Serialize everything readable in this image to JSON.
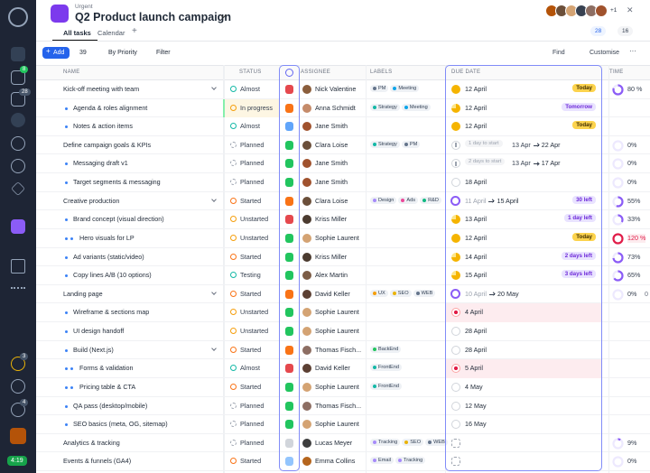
{
  "sidebar": {
    "tasks_badge": "8",
    "inbox_badge": "28",
    "timer_badge": "3",
    "help_badge": "4",
    "clock": "4:19"
  },
  "header": {
    "priority": "Urgent",
    "title": "Q2 Product launch campaign",
    "more_members": "+1",
    "comments": "28",
    "approvals": "16"
  },
  "tabs": [
    "All tasks",
    "Calendar"
  ],
  "toolbar": {
    "add": "Add",
    "count": "39",
    "sort": "By Priority",
    "filter": "Filter",
    "find": "Find",
    "customise": "Customise"
  },
  "table": {
    "columns": {
      "name": "NAME",
      "status": "STATUS",
      "assignee": "ASSIGNEE",
      "labels": "LABELS",
      "due": "DUE DATE",
      "time": "TIME"
    },
    "rows": [
      {
        "name": "Kick-off meeting with team",
        "level": 0,
        "expand": true,
        "status": "Almost",
        "status_color": "#14b8a6",
        "priority_color": "#e5484d",
        "assignee": "Nick Valentine",
        "avatar": "#8b5e3c",
        "labels": [
          {
            "text": "PM",
            "color": "#64748b"
          },
          {
            "text": "Meeting",
            "color": "#0ea5e9"
          }
        ],
        "due": {
          "kind": "today",
          "date": "12 April",
          "badge": "Today"
        },
        "time": {
          "value": 80,
          "label": "80 %"
        }
      },
      {
        "name": "Agenda & roles alignment",
        "level": 1,
        "status": "In progress",
        "status_color": "#f59e0b",
        "priority_color": "#f97316",
        "assignee": "Anna Schmidt",
        "avatar": "#c58b6a",
        "labels": [
          {
            "text": "Strategy",
            "color": "#14b8a6"
          },
          {
            "text": "Meeting",
            "color": "#0ea5e9"
          }
        ],
        "due": {
          "kind": "soon",
          "date": "12 April",
          "badge": "Tomorrow"
        }
      },
      {
        "name": "Notes & action items",
        "level": 1,
        "status": "Almost",
        "status_color": "#14b8a6",
        "priority_color": "#60a5fa",
        "assignee": "Jane Smith",
        "avatar": "#a0522d",
        "labels": [],
        "due": {
          "kind": "today",
          "date": "12 April",
          "badge": "Today"
        }
      },
      {
        "name": "Define campaign goals & KPIs",
        "level": 0,
        "status": "Planned",
        "status_color": "#9ca3af",
        "priority_color": "#22c55e",
        "assignee": "Clara Loise",
        "avatar": "#6b4f3a",
        "labels": [
          {
            "text": "Strategy",
            "color": "#14b8a6"
          },
          {
            "text": "PM",
            "color": "#64748b"
          }
        ],
        "due": {
          "kind": "waiting",
          "hint": "1 day to start",
          "from": "13 Apr",
          "to": "22 Apr"
        },
        "time": {
          "value": 0,
          "label": "0%"
        }
      },
      {
        "name": "Messaging draft v1",
        "level": 1,
        "status": "Planned",
        "status_color": "#9ca3af",
        "priority_color": "#22c55e",
        "assignee": "Jane Smith",
        "avatar": "#a0522d",
        "labels": [],
        "due": {
          "kind": "waiting",
          "hint": "2 days to start",
          "from": "13 Apr",
          "to": "17 Apr"
        },
        "time": {
          "value": 0,
          "label": "0%"
        }
      },
      {
        "name": "Target segments & messaging",
        "level": 1,
        "status": "Planned",
        "status_color": "#9ca3af",
        "priority_color": "#22c55e",
        "assignee": "Jane Smith",
        "avatar": "#a0522d",
        "labels": [],
        "due": {
          "kind": "future",
          "date": "18 April"
        },
        "time": {
          "value": 0,
          "label": "0%"
        }
      },
      {
        "name": "Creative production",
        "level": 0,
        "expand": true,
        "status": "Started",
        "status_color": "#f97316",
        "priority_color": "#f97316",
        "assignee": "Clara Loise",
        "avatar": "#6b4f3a",
        "labels": [
          {
            "text": "Design",
            "color": "#a78bfa"
          },
          {
            "text": "Ads",
            "color": "#ec4899"
          },
          {
            "text": "R&D",
            "color": "#10b981"
          }
        ],
        "due": {
          "kind": "range",
          "from": "11 April",
          "to": "15 April",
          "badge": "30 left"
        },
        "time": {
          "value": 55,
          "label": "55%"
        }
      },
      {
        "name": "Brand concept (visual direction)",
        "level": 1,
        "status": "Unstarted",
        "status_color": "#f59e0b",
        "priority_color": "#e5484d",
        "assignee": "Kriss Miller",
        "avatar": "#4b3b2f",
        "labels": [],
        "due": {
          "kind": "soon",
          "date": "13 April",
          "badge": "1 day left"
        },
        "time": {
          "value": 33,
          "label": "33%"
        }
      },
      {
        "name": "Hero visuals for LP",
        "level": 2,
        "status": "Unstarted",
        "status_color": "#f59e0b",
        "priority_color": "#22c55e",
        "assignee": "Sophie Laurent",
        "avatar": "#d4a373",
        "labels": [],
        "due": {
          "kind": "today",
          "date": "12 April",
          "badge": "Today"
        },
        "time": {
          "value": 120,
          "label": "120 %"
        }
      },
      {
        "name": "Ad variants (static/video)",
        "level": 1,
        "status": "Started",
        "status_color": "#f97316",
        "priority_color": "#22c55e",
        "assignee": "Kriss Miller",
        "avatar": "#4b3b2f",
        "labels": [],
        "due": {
          "kind": "soon",
          "date": "14 April",
          "badge": "2 days left"
        },
        "time": {
          "value": 73,
          "label": "73%"
        }
      },
      {
        "name": "Copy lines A/B (10 options)",
        "level": 1,
        "status": "Testing",
        "status_color": "#14b8a6",
        "priority_color": "#22c55e",
        "assignee": "Alex Martin",
        "avatar": "#7c5c45",
        "labels": [],
        "due": {
          "kind": "soon",
          "date": "15 April",
          "badge": "3 days left"
        },
        "time": {
          "value": 65,
          "label": "65%"
        }
      },
      {
        "name": "Landing page",
        "level": 0,
        "expand": true,
        "status": "Started",
        "status_color": "#f97316",
        "priority_color": "#f97316",
        "assignee": "David Keller",
        "avatar": "#5c4033",
        "labels": [
          {
            "text": "UX",
            "color": "#f59e0b"
          },
          {
            "text": "SEO",
            "color": "#eab308"
          },
          {
            "text": "WEB",
            "color": "#64748b"
          }
        ],
        "due": {
          "kind": "range",
          "from": "10 April",
          "to": "20 May"
        },
        "time": {
          "value": 0,
          "label": "0%",
          "extra": "0 of"
        }
      },
      {
        "name": "Wireframe & sections map",
        "level": 1,
        "status": "Unstarted",
        "status_color": "#f59e0b",
        "priority_color": "#22c55e",
        "assignee": "Sophie Laurent",
        "avatar": "#d4a373",
        "labels": [],
        "due": {
          "kind": "overdue",
          "date": "4 April"
        }
      },
      {
        "name": "UI design handoff",
        "level": 1,
        "status": "Unstarted",
        "status_color": "#f59e0b",
        "priority_color": "#22c55e",
        "assignee": "Sophie Laurent",
        "avatar": "#d4a373",
        "labels": [],
        "due": {
          "kind": "future",
          "date": "28 April"
        }
      },
      {
        "name": "Build (Next.js)",
        "level": 1,
        "expand": true,
        "status": "Started",
        "status_color": "#f97316",
        "priority_color": "#f97316",
        "assignee": "Thomas Fisch...",
        "avatar": "#8d6e63",
        "labels": [
          {
            "text": "BackEnd",
            "color": "#22c55e"
          }
        ],
        "due": {
          "kind": "future",
          "date": "28 April"
        }
      },
      {
        "name": "Forms & validation",
        "level": 2,
        "status": "Almost",
        "status_color": "#14b8a6",
        "priority_color": "#e5484d",
        "assignee": "David Keller",
        "avatar": "#5c4033",
        "labels": [
          {
            "text": "FrontEnd",
            "color": "#14b8a6"
          }
        ],
        "due": {
          "kind": "overdue",
          "date": "5 April"
        }
      },
      {
        "name": "Pricing table & CTA",
        "level": 2,
        "status": "Started",
        "status_color": "#f97316",
        "priority_color": "#22c55e",
        "assignee": "Sophie Laurent",
        "avatar": "#d4a373",
        "labels": [
          {
            "text": "FrontEnd",
            "color": "#14b8a6"
          }
        ],
        "due": {
          "kind": "future",
          "date": "4 May"
        }
      },
      {
        "name": "QA pass (desktop/mobile)",
        "level": 1,
        "status": "Planned",
        "status_color": "#9ca3af",
        "priority_color": "#22c55e",
        "assignee": "Thomas Fisch...",
        "avatar": "#8d6e63",
        "labels": [],
        "due": {
          "kind": "future",
          "date": "12 May"
        }
      },
      {
        "name": "SEO basics (meta, OG, sitemap)",
        "level": 1,
        "status": "Planned",
        "status_color": "#9ca3af",
        "priority_color": "#22c55e",
        "assignee": "Sophie Laurent",
        "avatar": "#d4a373",
        "labels": [],
        "due": {
          "kind": "future",
          "date": "16 May"
        }
      },
      {
        "name": "Analytics & tracking",
        "level": 0,
        "status": "Planned",
        "status_color": "#9ca3af",
        "priority_color": "#d1d5db",
        "assignee": "Lucas Meyer",
        "avatar": "#3e3e3e",
        "labels": [
          {
            "text": "Tracking",
            "color": "#a78bfa"
          },
          {
            "text": "SEO",
            "color": "#eab308"
          },
          {
            "text": "WEB",
            "color": "#64748b"
          }
        ],
        "due": {
          "kind": "empty"
        },
        "time": {
          "value": 9,
          "label": "9%"
        }
      },
      {
        "name": "Events & funnels (GA4)",
        "level": 0,
        "status": "Started",
        "status_color": "#f97316",
        "priority_color": "#93c5fd",
        "assignee": "Emma Collins",
        "avatar": "#b5651d",
        "labels": [
          {
            "text": "Email",
            "color": "#a78bfa"
          },
          {
            "text": "Tracking",
            "color": "#a78bfa"
          }
        ],
        "due": {
          "kind": "empty"
        },
        "time": {
          "value": 0,
          "label": "0%"
        }
      }
    ]
  }
}
